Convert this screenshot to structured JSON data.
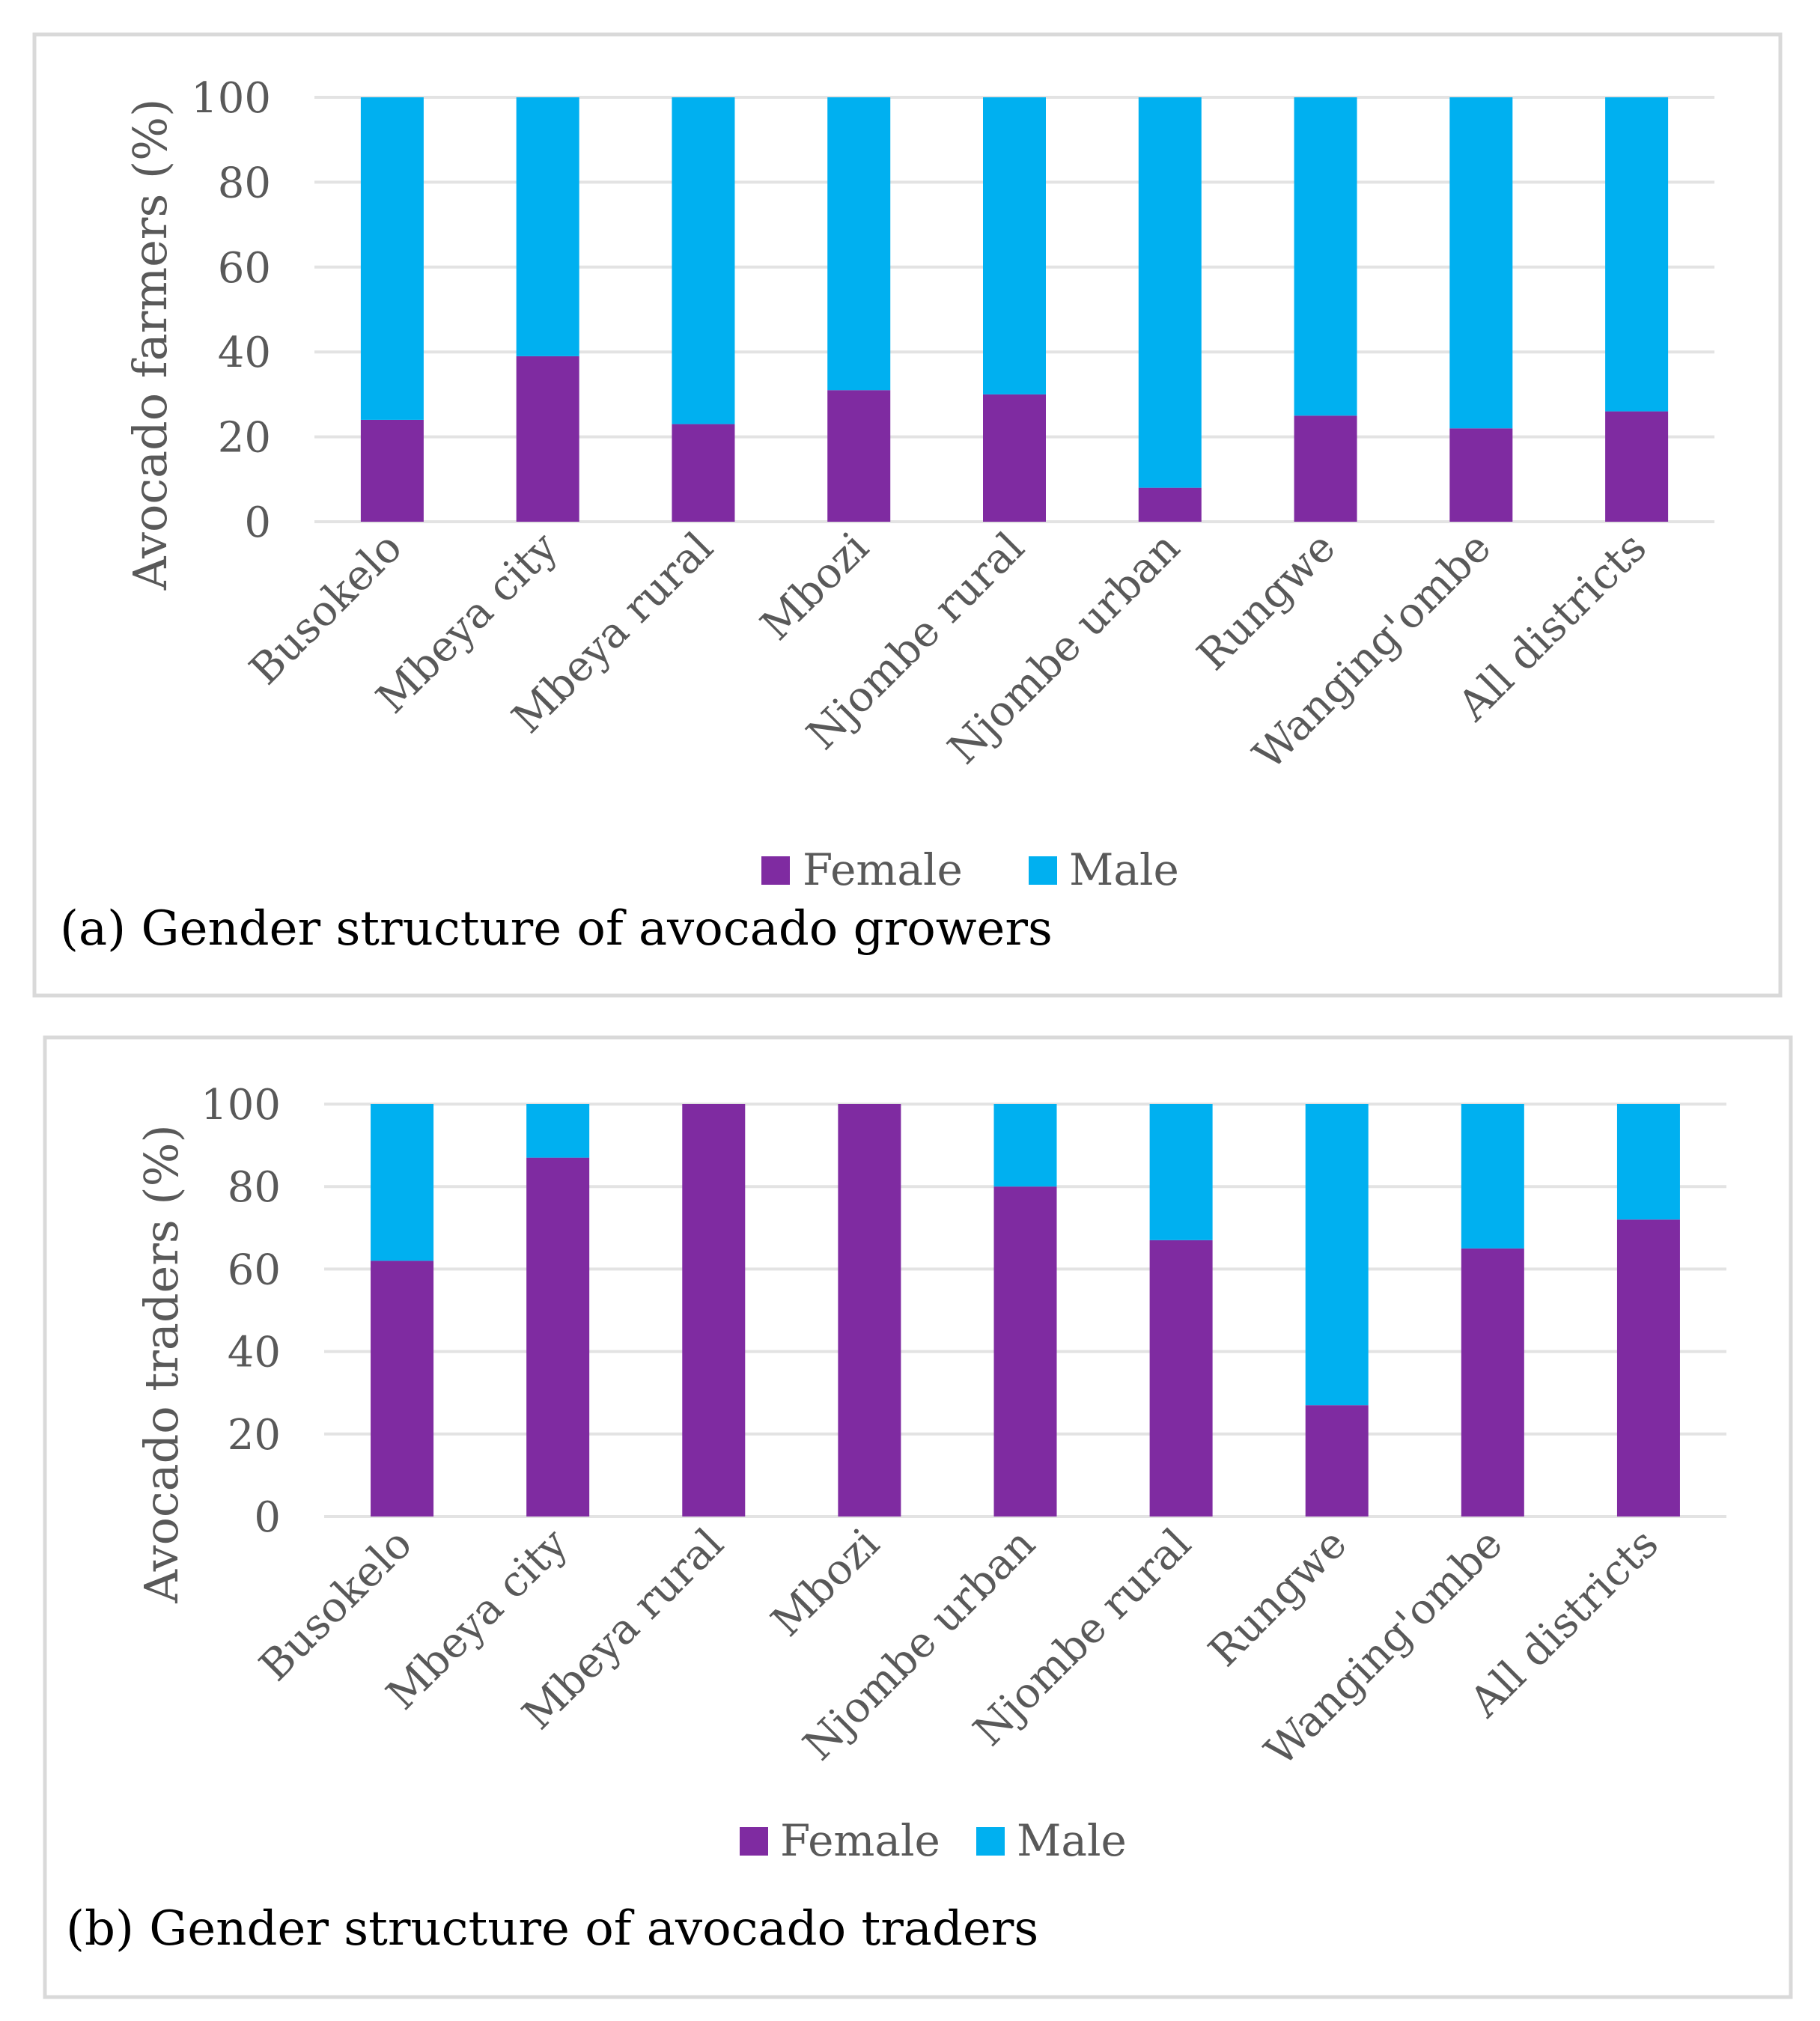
{
  "colors": {
    "female": "#7f2ba1",
    "male": "#00b0f0"
  },
  "chart_data": [
    {
      "type": "bar",
      "stacked": true,
      "caption": "(a) Gender structure of avocado growers",
      "ylabel": "Avocado farmers (%)",
      "ylim": [
        0,
        100
      ],
      "yticks": [
        0,
        20,
        40,
        60,
        80,
        100
      ],
      "grid": true,
      "legend": "bottom",
      "categories": [
        "Busokelo",
        "Mbeya city",
        "Mbeya rural",
        "Mbozi",
        "Njombe rural",
        "Njombe urban",
        "Rungwe",
        "Wanging'ombe",
        "All districts"
      ],
      "series": [
        {
          "name": "Female",
          "values": [
            24,
            39,
            23,
            31,
            30,
            8,
            25,
            22,
            26
          ]
        },
        {
          "name": "Male",
          "values": [
            76,
            61,
            77,
            69,
            70,
            92,
            75,
            78,
            74
          ]
        }
      ]
    },
    {
      "type": "bar",
      "stacked": true,
      "caption": "(b) Gender structure of avocado traders",
      "ylabel": "Avocado traders (%)",
      "ylim": [
        0,
        100
      ],
      "yticks": [
        0,
        20,
        40,
        60,
        80,
        100
      ],
      "grid": true,
      "legend": "bottom",
      "categories": [
        "Busokelo",
        "Mbeya city",
        "Mbeya rural",
        "Mbozi",
        "Njombe urban",
        "Njombe rural",
        "Rungwe",
        "Wanging'ombe",
        "All districts"
      ],
      "series": [
        {
          "name": "Female",
          "values": [
            62,
            87,
            100,
            100,
            80,
            67,
            27,
            65,
            72
          ]
        },
        {
          "name": "Male",
          "values": [
            38,
            13,
            0,
            0,
            20,
            33,
            73,
            35,
            28
          ]
        }
      ]
    }
  ]
}
